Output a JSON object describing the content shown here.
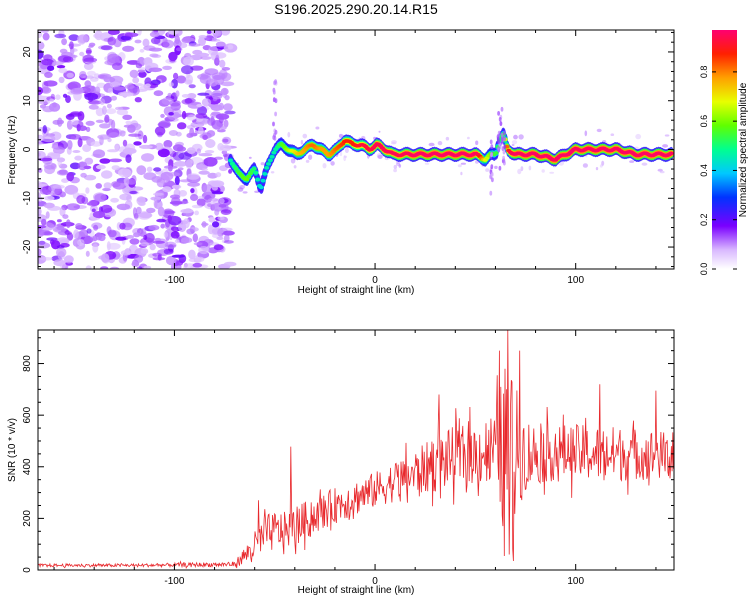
{
  "title": "S196.2025.290.20.14.R15",
  "chart_data": [
    {
      "type": "heatmap",
      "title": "S196.2025.290.20.14.R15",
      "xlabel": "Height of straight line (km)",
      "ylabel": "Frequency (Hz)",
      "xlim": [
        -168,
        149
      ],
      "ylim": [
        -24.5,
        24.5
      ],
      "xticks": [
        -100,
        0,
        100
      ],
      "yticks": [
        -20,
        -10,
        0,
        10,
        20
      ],
      "colorbar": {
        "label": "Normalized spectral amplitude",
        "range": [
          0,
          0.97
        ],
        "ticks": [
          0.0,
          0.2,
          0.4,
          0.6,
          0.8
        ],
        "tick_labels": [
          "0.0",
          "0.2",
          "0.4",
          "0.6",
          "0.8"
        ]
      },
      "noise_region_x": [
        -168,
        -72
      ],
      "ridge": {
        "x": [
          -72,
          -68,
          -64,
          -60,
          -57,
          -54,
          -50,
          -47,
          -43,
          -39,
          -35,
          -31,
          -27,
          -23,
          -19,
          -15,
          -11,
          -7,
          -3,
          1,
          5,
          9,
          13,
          20,
          30,
          40,
          50,
          55,
          58,
          60,
          62,
          64,
          66,
          70,
          80,
          90,
          95,
          100,
          110,
          120,
          130,
          140,
          148
        ],
        "freq": [
          -2,
          -5,
          -6,
          -4,
          -8,
          -4,
          0,
          1,
          0,
          -1,
          0,
          1,
          0,
          -1,
          0,
          2,
          1,
          1,
          0,
          1,
          0,
          -1,
          -1,
          -1,
          -1,
          -1,
          -1,
          -2,
          -1,
          -1,
          2,
          3,
          0,
          -1,
          -1,
          -2,
          -1,
          0,
          0,
          0,
          -1,
          -1,
          -1
        ],
        "amplitude": [
          0.35,
          0.45,
          0.5,
          0.4,
          0.3,
          0.35,
          0.35,
          0.45,
          0.55,
          0.65,
          0.7,
          0.75,
          0.7,
          0.7,
          0.75,
          0.8,
          0.8,
          0.85,
          0.85,
          0.9,
          0.9,
          0.9,
          0.9,
          0.95,
          0.95,
          0.95,
          0.95,
          0.6,
          0.5,
          0.45,
          0.4,
          0.45,
          0.8,
          0.95,
          0.95,
          0.95,
          0.95,
          0.95,
          0.95,
          0.95,
          0.95,
          0.95,
          0.95
        ]
      }
    },
    {
      "type": "line",
      "xlabel": "Height of straight line (km)",
      "ylabel": "SNR (10 * v/v)",
      "xlim": [
        -168,
        149
      ],
      "ylim": [
        0,
        930
      ],
      "xticks": [
        -100,
        0,
        100
      ],
      "yticks": [
        0,
        200,
        400,
        600,
        800
      ],
      "color": "#e8282c",
      "series": [
        {
          "name": "SNR",
          "envelope": {
            "x": [
              -168,
              -120,
              -70,
              -60,
              -55,
              -50,
              -45,
              -40,
              -30,
              -20,
              -10,
              0,
              10,
              20,
              30,
              40,
              50,
              60,
              63,
              66,
              68,
              70,
              75,
              80,
              90,
              100,
              110,
              120,
              130,
              140,
              149
            ],
            "mean": [
              18,
              18,
              22,
              90,
              140,
              150,
              155,
              170,
              210,
              250,
              280,
              310,
              345,
              375,
              410,
              440,
              450,
              470,
              460,
              455,
              450,
              470,
              450,
              450,
              455,
              455,
              450,
              450,
              450,
              445,
              440
            ],
            "spread": [
              6,
              6,
              10,
              60,
              70,
              80,
              70,
              80,
              70,
              70,
              70,
              70,
              80,
              90,
              110,
              120,
              120,
              150,
              280,
              380,
              320,
              250,
              150,
              120,
              110,
              110,
              110,
              110,
              100,
              100,
              90
            ]
          },
          "spikes": [
            {
              "x": -42,
              "y": 478
            },
            {
              "x": -58,
              "y": 270
            },
            {
              "x": 32,
              "y": 680
            },
            {
              "x": 62,
              "y": 850
            },
            {
              "x": 66,
              "y": 930
            },
            {
              "x": 67,
              "y": 60
            },
            {
              "x": 69,
              "y": 35
            },
            {
              "x": 72,
              "y": 850
            },
            {
              "x": 112,
              "y": 720
            },
            {
              "x": 140,
              "y": 695
            }
          ]
        }
      ]
    }
  ]
}
